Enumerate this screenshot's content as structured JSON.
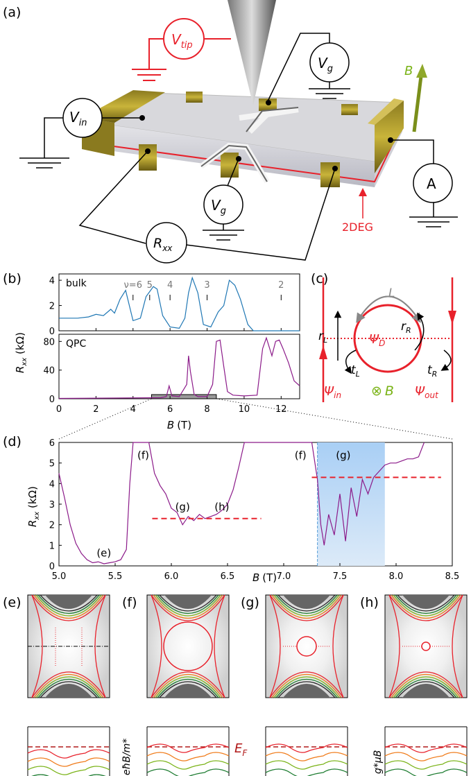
{
  "panel_labels": {
    "a": "(a)",
    "b": "(b)",
    "c": "(c)",
    "d": "(d)",
    "e": "(e)",
    "f": "(f)",
    "g": "(g)",
    "h": "(h)"
  },
  "setup": {
    "vtip": "V",
    "vtip_sub": "tip",
    "vg": "V",
    "vg_sub": "g",
    "vin": "V",
    "vin_sub": "in",
    "ammeter": "A",
    "rxx": "R",
    "rxx_sub": "xx",
    "b_field": "B",
    "twodeg": "2DEG"
  },
  "colors": {
    "purple": "#8b1a89",
    "blue": "#1f77b4",
    "red": "#e8212b",
    "green": "#7ab317",
    "gray": "#888888",
    "dark_red": "#b01818"
  },
  "chart_data": [
    {
      "type": "line",
      "panel": "b-top",
      "label": "bulk",
      "ylabel": "R",
      "ylabel_sub": "xx",
      "ylabel_unit": "(kΩ)",
      "xlim": [
        0,
        13
      ],
      "ylim": [
        0,
        4.5
      ],
      "yticks": [
        "0",
        "2",
        "4"
      ],
      "filling_factors": [
        {
          "label": "ν=6",
          "x": 4.0
        },
        {
          "label": "5",
          "x": 4.9
        },
        {
          "label": "4",
          "x": 6.0
        },
        {
          "label": "3",
          "x": 8.0
        },
        {
          "label": "2",
          "x": 12.0
        }
      ],
      "x": [
        0,
        1,
        1.6,
        2.0,
        2.4,
        2.8,
        3.0,
        3.3,
        3.6,
        4.0,
        4.4,
        4.7,
        4.9,
        5.1,
        5.3,
        5.6,
        6.0,
        6.5,
        6.8,
        7.0,
        7.2,
        7.5,
        7.8,
        8.2,
        8.6,
        8.9,
        9.2,
        9.5,
        9.8,
        10.2,
        10.5,
        11,
        12,
        13
      ],
      "y": [
        1.0,
        1.0,
        1.1,
        1.3,
        1.2,
        1.7,
        1.4,
        2.5,
        3.2,
        0.8,
        1.0,
        2.7,
        3.1,
        3.5,
        3.3,
        1.2,
        0.3,
        0.2,
        1.0,
        3.0,
        4.2,
        3.0,
        0.5,
        0.3,
        1.5,
        2.0,
        4.0,
        3.6,
        2.5,
        0.5,
        0.0,
        0.0,
        0.0,
        0.0
      ]
    },
    {
      "type": "line",
      "panel": "b-bottom",
      "label": "QPC",
      "xlabel": "B",
      "xlabel_unit": "(T)",
      "xlim": [
        0,
        13
      ],
      "ylim": [
        0,
        90
      ],
      "xticks": [
        "0",
        "2",
        "4",
        "6",
        "8",
        "10",
        "12"
      ],
      "yticks": [
        "0",
        "40",
        "80"
      ],
      "x": [
        0,
        3,
        5.5,
        5.8,
        5.95,
        6.1,
        6.5,
        6.9,
        7.0,
        7.1,
        7.3,
        7.5,
        8.0,
        8.3,
        8.5,
        8.7,
        8.9,
        9.1,
        9.4,
        10,
        10.7,
        11.0,
        11.2,
        11.5,
        11.7,
        11.9,
        12.1,
        12.4,
        12.7,
        13
      ],
      "y": [
        0.5,
        1,
        1.5,
        3,
        18,
        4,
        3,
        20,
        60,
        38,
        6,
        3,
        3,
        20,
        80,
        82,
        45,
        10,
        5,
        4,
        5,
        70,
        85,
        60,
        80,
        82,
        70,
        50,
        25,
        18
      ],
      "zoom_box": [
        5.0,
        8.5
      ]
    },
    {
      "type": "line",
      "panel": "d",
      "xlabel": "B",
      "xlabel_unit": "(T)",
      "ylabel": "R",
      "ylabel_sub": "xx",
      "ylabel_unit": "(kΩ)",
      "xlim": [
        5.0,
        8.5
      ],
      "ylim": [
        0,
        6
      ],
      "xticks": [
        "5.0",
        "5.5",
        "6.0",
        "6.5",
        "7.0",
        "7.5",
        "8.0",
        "8.5"
      ],
      "yticks": [
        "0",
        "1",
        "2",
        "3",
        "4",
        "5",
        "6"
      ],
      "x": [
        5.0,
        5.05,
        5.1,
        5.15,
        5.2,
        5.25,
        5.3,
        5.35,
        5.4,
        5.45,
        5.5,
        5.55,
        5.6,
        5.63,
        5.66,
        5.8,
        5.85,
        5.9,
        5.95,
        6.0,
        6.05,
        6.1,
        6.15,
        6.2,
        6.25,
        6.3,
        6.35,
        6.4,
        6.45,
        6.5,
        6.55,
        6.6,
        6.65,
        7.25,
        7.3,
        7.33,
        7.36,
        7.4,
        7.45,
        7.5,
        7.55,
        7.6,
        7.65,
        7.7,
        7.75,
        7.8,
        7.85,
        7.9,
        7.95,
        8.0,
        8.05,
        8.1,
        8.15,
        8.2,
        8.25
      ],
      "y": [
        4.5,
        3.3,
        2.0,
        1.1,
        0.6,
        0.3,
        0.15,
        0.2,
        0.1,
        0.15,
        0.2,
        0.3,
        0.8,
        4.0,
        6.0,
        6.0,
        4.5,
        3.9,
        3.5,
        2.8,
        2.6,
        2.0,
        2.4,
        2.2,
        2.5,
        2.3,
        2.4,
        2.5,
        2.7,
        3.0,
        3.7,
        4.8,
        6.0,
        6.0,
        4.2,
        2.0,
        1.0,
        2.5,
        1.5,
        3.5,
        1.2,
        3.8,
        2.4,
        4.2,
        3.5,
        4.3,
        4.6,
        4.9,
        5.0,
        5.0,
        5.1,
        5.2,
        5.2,
        5.3,
        6.0
      ],
      "dashed_levels": [
        {
          "y": 2.3,
          "x_from": 5.83,
          "x_to": 6.8
        },
        {
          "y": 4.3,
          "x_from": 7.25,
          "x_to": 8.4
        }
      ],
      "shaded_region": [
        7.3,
        7.9
      ],
      "annotations": [
        {
          "text": "(e)",
          "x": 5.4,
          "y": 0.45
        },
        {
          "text": "(f)",
          "x": 5.75,
          "y": 5.2
        },
        {
          "text": "(g)",
          "x": 6.1,
          "y": 2.7
        },
        {
          "text": "(h)",
          "x": 6.45,
          "y": 2.7
        },
        {
          "text": "(f)",
          "x": 7.15,
          "y": 5.2
        },
        {
          "text": "(g)",
          "x": 7.53,
          "y": 5.2
        }
      ]
    }
  ],
  "panel_c": {
    "L": "L",
    "r_L": "r",
    "r_L_sub": "L",
    "r_R": "r",
    "r_R_sub": "R",
    "t_L": "t",
    "t_L_sub": "L",
    "t_R": "t",
    "t_R_sub": "R",
    "psi_D": "Ψ",
    "psi_D_sub": "D",
    "psi_in": "Ψ",
    "psi_in_sub": "in",
    "psi_out": "Ψ",
    "psi_out_sub": "out",
    "b_symbol": "⊗",
    "b": "B"
  },
  "panel_energy": {
    "ef": "E",
    "ef_sub": "F",
    "cyclotron": "eħB/m*",
    "zeeman": "g*μB"
  }
}
